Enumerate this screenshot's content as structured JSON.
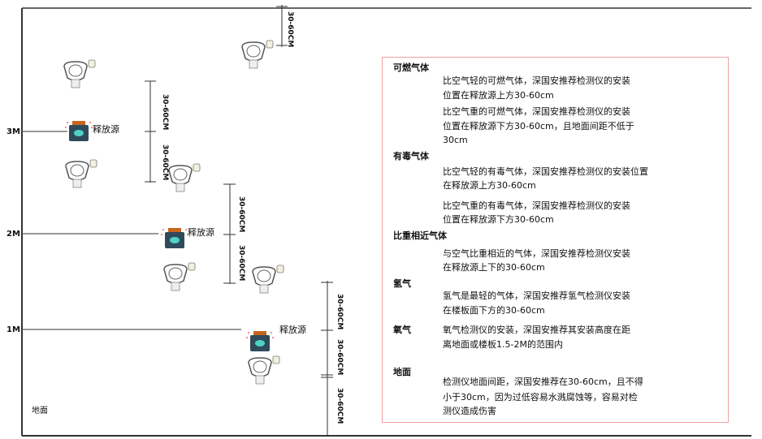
{
  "levels": {
    "m3": "3M",
    "m2": "2M",
    "m1": "1M",
    "ground": "地面"
  },
  "source_label": "释放源",
  "dimension_label": "30-60CM",
  "colors": {
    "frame": "#333333",
    "panel_border": "#f0a0a8",
    "source_body": "#2f4a5a",
    "source_accent": "#4fd1c5",
    "source_cap": "#c8651e"
  },
  "icons": {
    "detector": "gas-detector-icon",
    "source": "gas-source-icon"
  },
  "panel": {
    "combustible": {
      "title": "可燃气体",
      "light": [
        "比空气轻的可燃气体，深国安推荐检测仪的安装",
        "位置在释放源上方30-60cm"
      ],
      "heavy": [
        "比空气重的可燃气体，深国安推荐检测仪的安装",
        "位置在释放源下方30-60cm，且地面间距不低于",
        "30cm"
      ]
    },
    "toxic": {
      "title": "有毒气体",
      "light": [
        "比空气轻的有毒气体，深国安推荐检测仪的安装位置",
        "在释放源上方30-60cm"
      ],
      "heavy": [
        "比空气重的有毒气体，深国安推荐检测仪的安装",
        "位置在释放源下方30-60cm"
      ]
    },
    "similar": {
      "title": "比重相近气体",
      "text": [
        "与空气比重相近的气体，深国安推荐检测仪安装",
        "在释放源上下的30-60cm"
      ]
    },
    "hydrogen": {
      "title": "氢气",
      "text": [
        "氢气是最轻的气体，深国安推荐氢气检测仪安装",
        "在楼板面下方的30-60cm"
      ]
    },
    "oxygen": {
      "title": "氧气",
      "text": [
        "氧气检测仪的安装，深国安推荐其安装高度在距",
        "离地面或楼板1.5-2M的范围内"
      ]
    },
    "ground": {
      "title": "地面",
      "text": [
        "检测仪地面间距，深国安推荐在30-60cm，且不得",
        "小于30cm，因为过低容易水溅腐蚀等，容易对检",
        "测仪造成伤害"
      ]
    }
  }
}
